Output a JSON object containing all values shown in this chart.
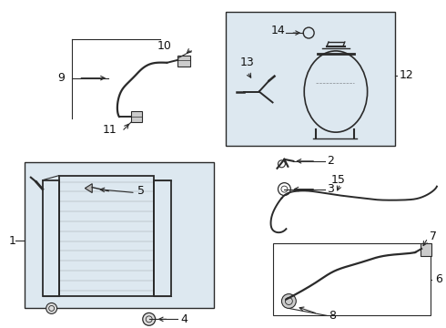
{
  "bg_color": "#ffffff",
  "line_color": "#2a2a2a",
  "box_fill": "#e8e8e8",
  "box_fill2": "#dde8f0",
  "label_color": "#111111",
  "fig_width": 4.9,
  "fig_height": 3.6,
  "dpi": 100
}
